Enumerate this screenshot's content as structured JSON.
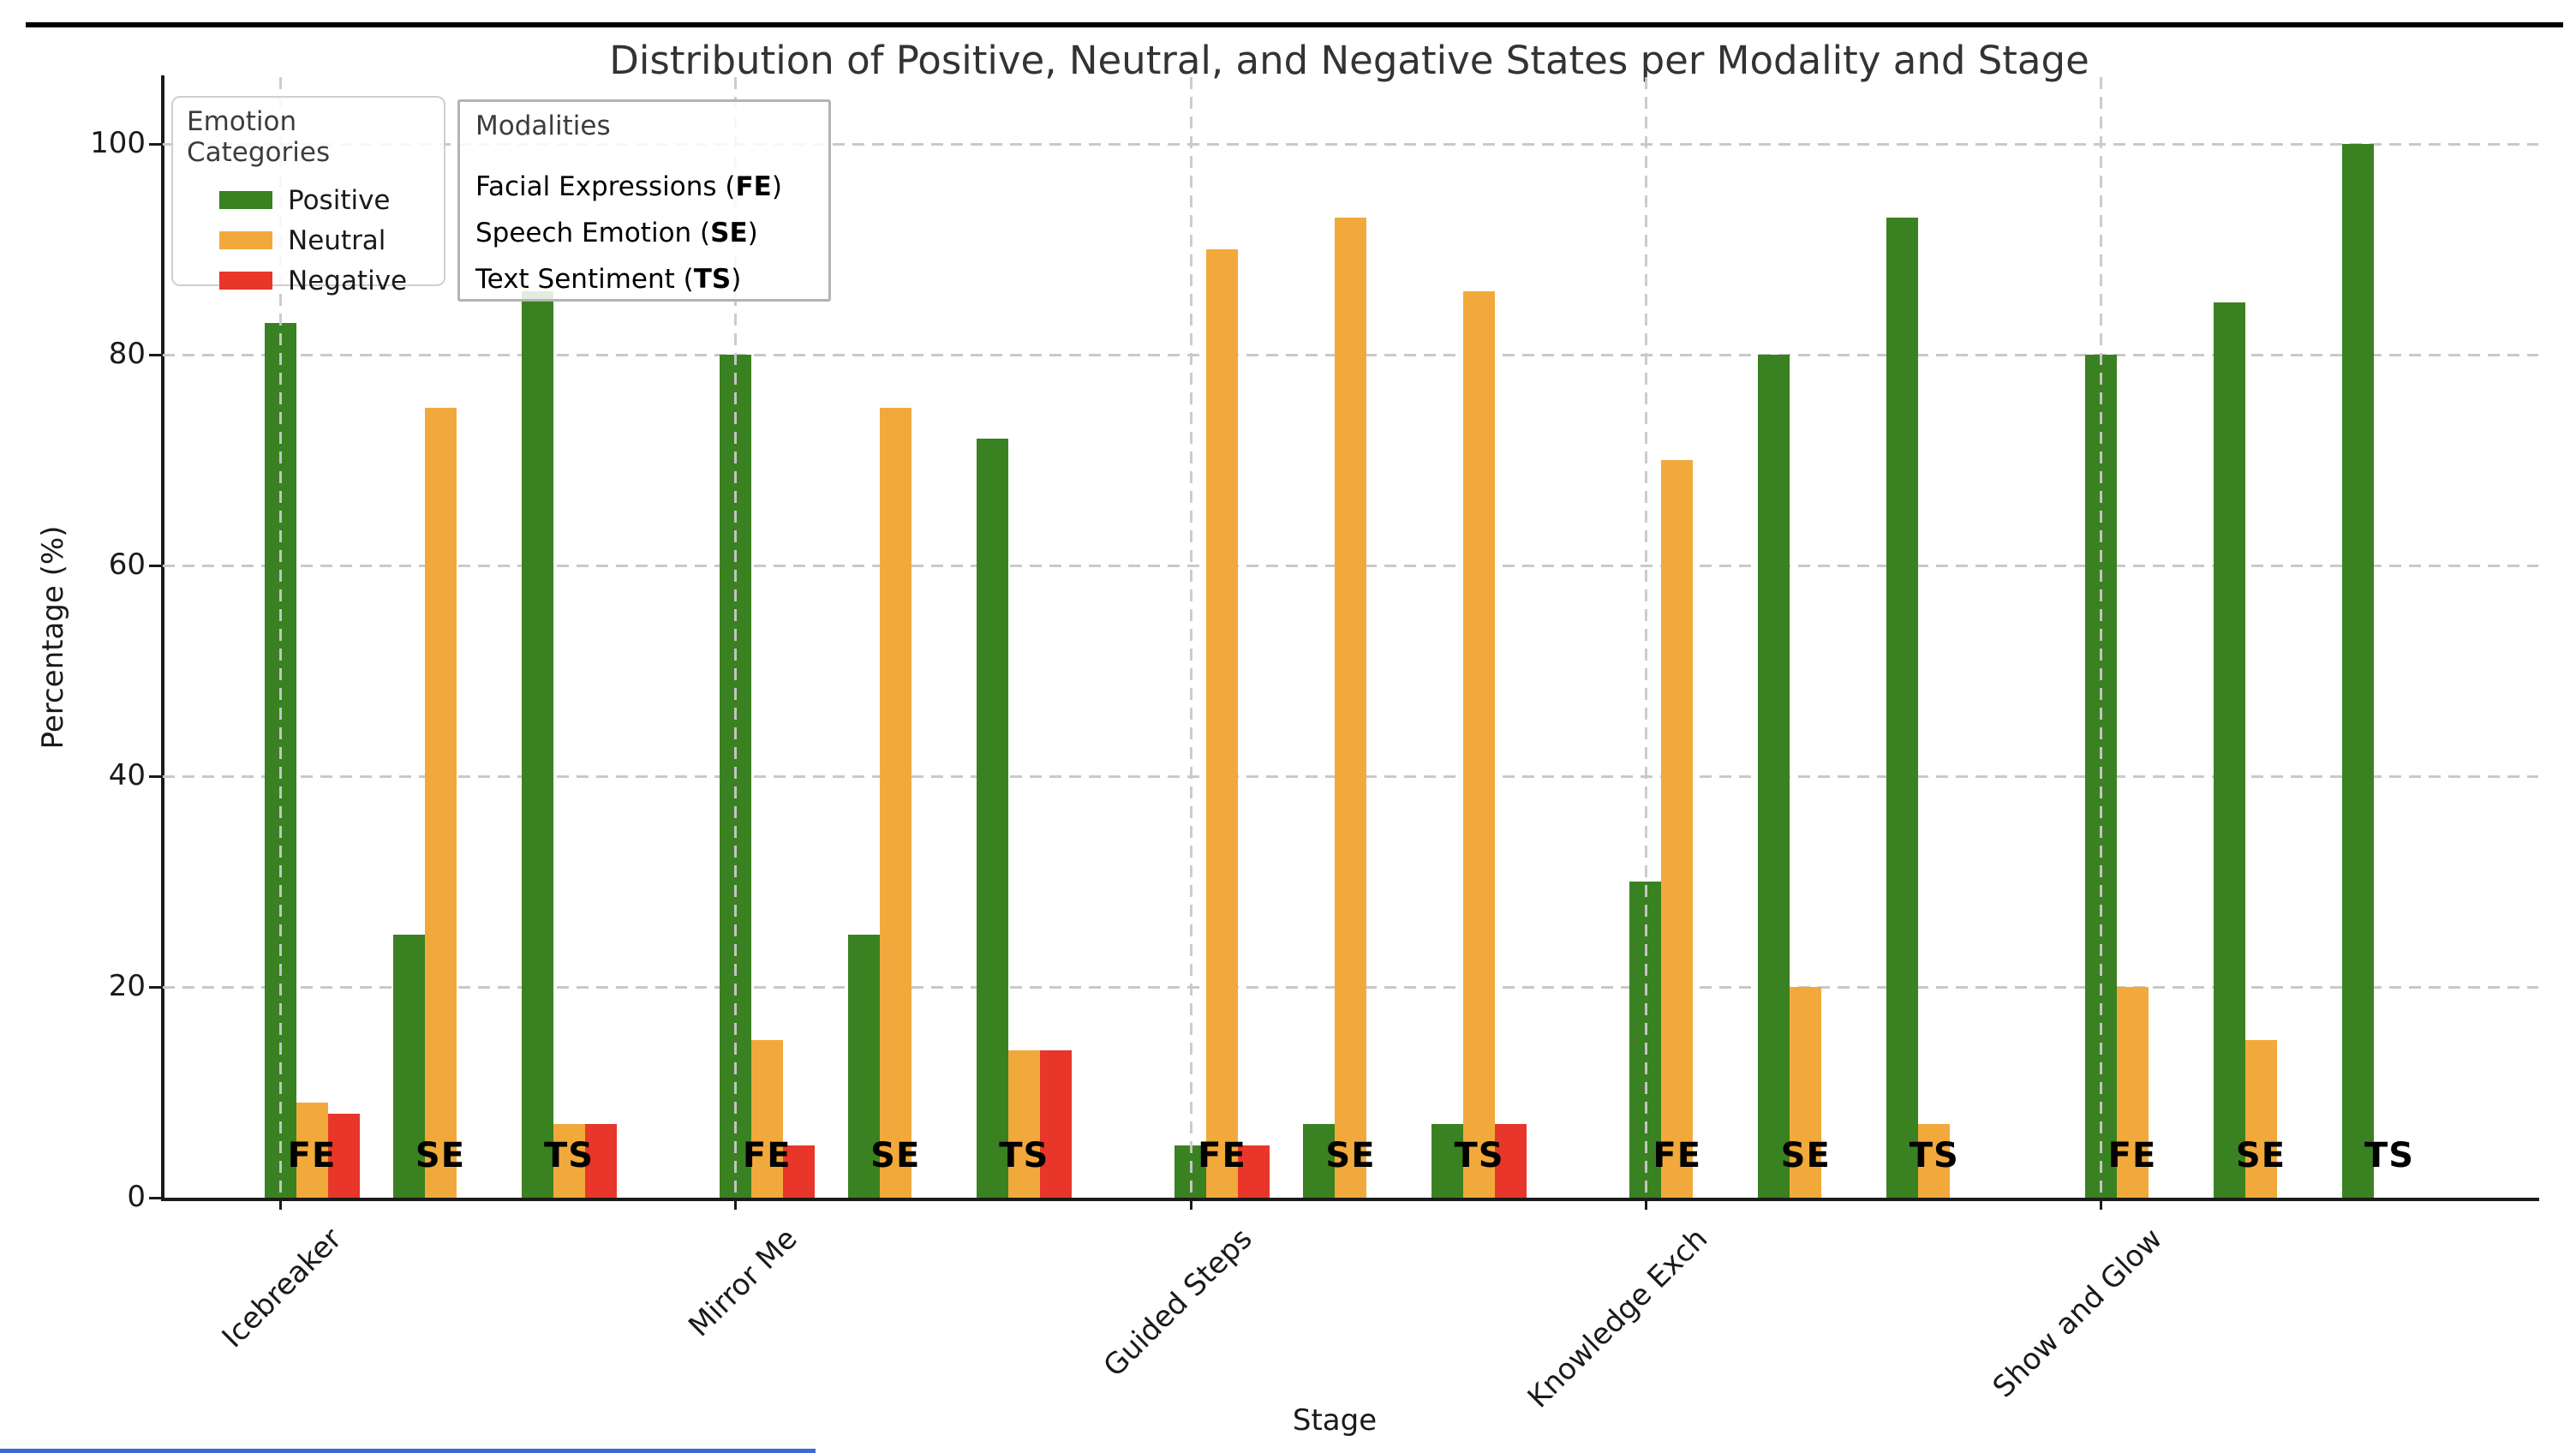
{
  "figure": {
    "title": "Distribution of Positive, Neutral, and Negative States per Modality and Stage",
    "xlabel": "Stage",
    "ylabel": "Percentage (%)"
  },
  "legend_emotions": {
    "title": "Emotion Categories",
    "entries": [
      {
        "label": "Positive",
        "color": "#3a8121"
      },
      {
        "label": "Neutral",
        "color": "#f2a93b"
      },
      {
        "label": "Negative",
        "color": "#e8362a"
      }
    ]
  },
  "legend_modalities": {
    "title": "Modalities",
    "entries": [
      {
        "prefix": "Facial Expressions (",
        "abbr": "FE",
        "suffix": ")"
      },
      {
        "prefix": "Speech Emotion (",
        "abbr": "SE",
        "suffix": ")"
      },
      {
        "prefix": "Text Sentiment (",
        "abbr": "TS",
        "suffix": ")"
      }
    ]
  },
  "decor": {
    "top_rule_color": "#000000",
    "bottom_rule_color": "#3e68d8"
  },
  "chart_data": {
    "type": "bar",
    "title": "Distribution of Positive, Neutral, and Negative States per Modality and Stage",
    "xlabel": "Stage",
    "ylabel": "Percentage (%)",
    "ylim": [
      0,
      100
    ],
    "yticks": [
      0,
      20,
      40,
      60,
      80,
      100
    ],
    "grid": true,
    "legend_position": "upper left",
    "categories": [
      "Icebreaker",
      "Mirror Me",
      "Guided Steps",
      "Knowledge Exch",
      "Show and Glow"
    ],
    "modalities": [
      "FE",
      "SE",
      "TS"
    ],
    "series_names": [
      "Positive",
      "Neutral",
      "Negative"
    ],
    "colors": {
      "Positive": "#3a8121",
      "Neutral": "#f2a93b",
      "Negative": "#e8362a"
    },
    "values": {
      "Icebreaker": {
        "FE": [
          83,
          9,
          8
        ],
        "SE": [
          25,
          75,
          0
        ],
        "TS": [
          86,
          7,
          7
        ]
      },
      "Mirror Me": {
        "FE": [
          80,
          15,
          5
        ],
        "SE": [
          25,
          75,
          0
        ],
        "TS": [
          72,
          14,
          14
        ]
      },
      "Guided Steps": {
        "FE": [
          5,
          90,
          5
        ],
        "SE": [
          7,
          93,
          0
        ],
        "TS": [
          7,
          86,
          7
        ]
      },
      "Knowledge Exch": {
        "FE": [
          30,
          70,
          0
        ],
        "SE": [
          80,
          20,
          0
        ],
        "TS": [
          93,
          7,
          0
        ]
      },
      "Show and Glow": {
        "FE": [
          80,
          20,
          0
        ],
        "SE": [
          85,
          15,
          0
        ],
        "TS": [
          100,
          0,
          0
        ]
      }
    }
  }
}
